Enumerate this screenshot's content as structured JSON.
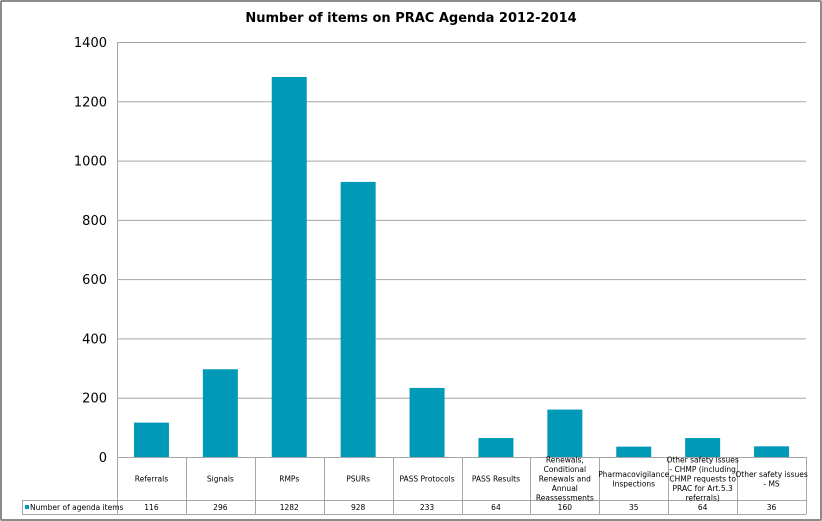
{
  "chart_data": {
    "type": "bar",
    "title": "Number of items on PRAC Agenda 2012-2014",
    "xlabel": "",
    "ylabel": "",
    "ylim": [
      0,
      1400
    ],
    "yticks": [
      "0",
      "200",
      "400",
      "600",
      "800",
      "1000",
      "1200",
      "1400"
    ],
    "grid": true,
    "legend_position": "data-table-left",
    "categories": [
      [
        "Referrals"
      ],
      [
        "Signals"
      ],
      [
        "RMPs"
      ],
      [
        "PSURs"
      ],
      [
        "PASS Protocols"
      ],
      [
        "PASS Results"
      ],
      [
        "Renewals,",
        "Conditional",
        "Renewals and",
        "Annual",
        "Reassessments"
      ],
      [
        "Pharmacovigilance",
        "Inspections"
      ],
      [
        "Other safety issues",
        "- CHMP (including",
        "CHMP requests to",
        "PRAC for Art.5.3",
        "referrals)"
      ],
      [
        "Other safety issues",
        "- MS"
      ]
    ],
    "series": [
      {
        "name": "Number of agenda items",
        "color": "#0099b8",
        "values": [
          116,
          296,
          1282,
          928,
          233,
          64,
          160,
          35,
          64,
          36
        ],
        "labels": [
          "116",
          "296",
          "1282",
          "928",
          "233",
          "64",
          "160",
          "35",
          "64",
          "36"
        ]
      }
    ]
  }
}
